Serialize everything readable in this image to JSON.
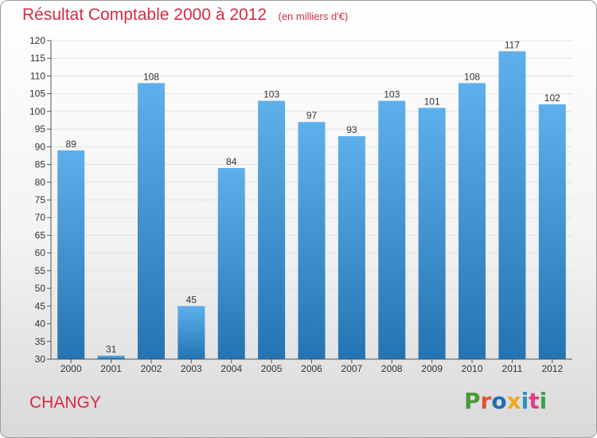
{
  "header": {
    "title": "Résultat Comptable 2000 à 2012",
    "subtitle": "(en milliers d'€)"
  },
  "footer": {
    "commune": "CHANGY",
    "brand": "Proxiti",
    "brand_colors": [
      "#4a9a3a",
      "#e0552b",
      "#1f6fb3",
      "#f0a81c",
      "#2a8fcf",
      "#e03e83",
      "#3ca24a"
    ]
  },
  "colors": {
    "title": "#d62b43",
    "bar_top": "#5eb0ec",
    "bar_bottom": "#2474b3",
    "axis": "#555555",
    "grid": "#e2e2e2"
  },
  "chart_data": {
    "type": "bar",
    "categories": [
      "2000",
      "2001",
      "2002",
      "2003",
      "2004",
      "2005",
      "2006",
      "2007",
      "2008",
      "2009",
      "2010",
      "2011",
      "2012"
    ],
    "values": [
      89,
      31,
      108,
      45,
      84,
      103,
      97,
      93,
      103,
      101,
      108,
      117,
      102
    ],
    "ylim": [
      30,
      120
    ],
    "yticks": [
      30,
      35,
      40,
      45,
      50,
      55,
      60,
      65,
      70,
      75,
      80,
      85,
      90,
      95,
      100,
      105,
      110,
      115,
      120
    ],
    "title": "Résultat Comptable 2000 à 2012",
    "xlabel": "",
    "ylabel": "",
    "grid": true,
    "data_labels": true
  }
}
